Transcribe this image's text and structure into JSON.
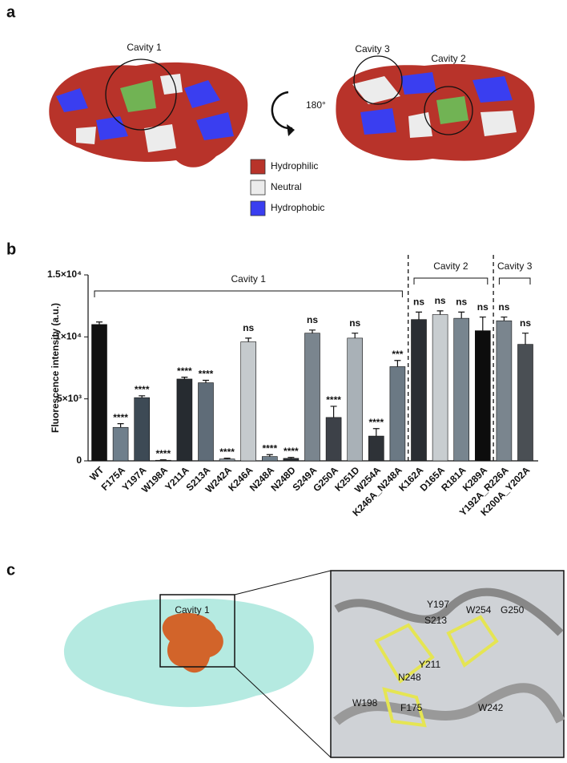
{
  "panel_a": {
    "label": "a",
    "cavity_labels": [
      "Cavity 1",
      "Cavity 3",
      "Cavity 2"
    ],
    "rotation": "180°",
    "legend": [
      {
        "name": "Hydrophilic",
        "color": "#b8332a"
      },
      {
        "name": "Neutral",
        "color": "#ececec"
      },
      {
        "name": "Hydrophobic",
        "color": "#3a3ef0"
      }
    ]
  },
  "chart_data": {
    "type": "bar",
    "label": "b",
    "ylabel": "Fluorescence intensity (a.u.)",
    "categories": [
      "WT",
      "F175A",
      "Y197A",
      "W198A",
      "Y211A",
      "S213A",
      "W242A",
      "K246A",
      "N248A",
      "N248D",
      "S249A",
      "G250A",
      "K251D",
      "W254A",
      "K246A_N248A",
      "K162A",
      "D165A",
      "R181A",
      "K289A",
      "Y192A_R226A",
      "K200A_Y202A"
    ],
    "values": [
      11000,
      2700,
      5100,
      50,
      6600,
      6300,
      150,
      9600,
      350,
      200,
      10300,
      3500,
      9900,
      2000,
      7600,
      11400,
      11800,
      11500,
      10500,
      11300,
      9400
    ],
    "errors": [
      200,
      300,
      150,
      30,
      150,
      200,
      60,
      300,
      150,
      80,
      250,
      900,
      400,
      600,
      500,
      600,
      300,
      500,
      1100,
      300,
      900
    ],
    "significance": [
      null,
      "****",
      "****",
      "****",
      "****",
      "****",
      "****",
      "ns",
      "****",
      "****",
      "ns",
      "****",
      "ns",
      "****",
      "***",
      "ns",
      "ns",
      "ns",
      "ns",
      "ns",
      "ns"
    ],
    "colors": [
      "#111111",
      "#6f7f8c",
      "#3d4a55",
      "#777777",
      "#262b30",
      "#5f6c78",
      "#8b969f",
      "#c5cacd",
      "#6f7f8c",
      "#2a2e33",
      "#7a858e",
      "#3d4148",
      "#a9b1b7",
      "#2e3237",
      "#6b7984",
      "#2a2e33",
      "#c8cdd0",
      "#78858f",
      "#0d0d0d",
      "#7a858e",
      "#4a4f54"
    ],
    "groups": [
      {
        "name": "Cavity 1",
        "count": 15
      },
      {
        "name": "Cavity 2",
        "count": 4
      },
      {
        "name": "Cavity 3",
        "count": 2
      }
    ],
    "ylim": [
      0,
      15000
    ],
    "yticks": [
      0,
      {
        "value": 5000,
        "label": "5×10³"
      },
      {
        "value": 10000,
        "label": "1×10⁴"
      },
      {
        "value": 15000,
        "label": "1.5×10⁴"
      }
    ]
  },
  "panel_c": {
    "label": "c",
    "cavity_label": "Cavity 1",
    "residues": [
      "Y197",
      "S213",
      "W254",
      "G250",
      "Y211",
      "N248",
      "W198",
      "F175",
      "W242"
    ]
  }
}
